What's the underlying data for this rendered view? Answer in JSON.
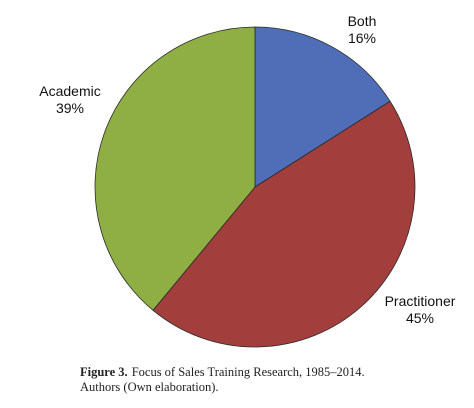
{
  "chart_data": {
    "type": "pie",
    "title": "",
    "slices": [
      {
        "label": "Both",
        "value": 16,
        "percent_label": "16%",
        "color": "#4F6EB7"
      },
      {
        "label": "Practitioner",
        "value": 45,
        "percent_label": "45%",
        "color": "#A23E3B"
      },
      {
        "label": "Academic",
        "value": 39,
        "percent_label": "39%",
        "color": "#8FAF45"
      }
    ],
    "start_angle": "12 o'clock",
    "direction": "clockwise"
  },
  "caption": {
    "figure_number": "Figure 3.",
    "line1": "Focus of Sales Training Research, 1985–2014.",
    "line2": "Authors (Own elaboration)."
  }
}
